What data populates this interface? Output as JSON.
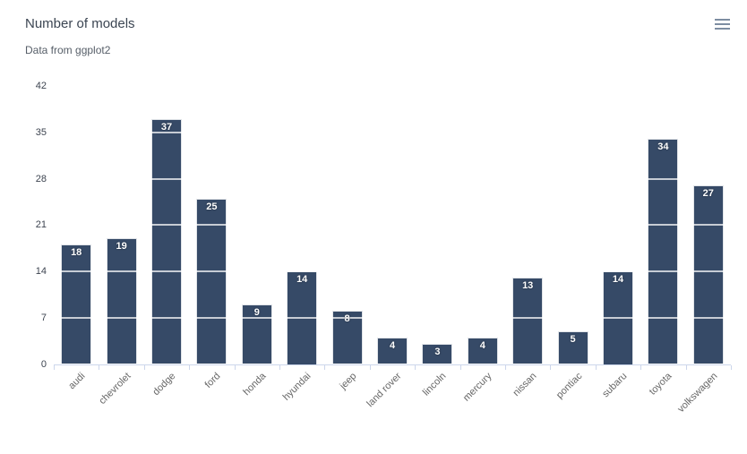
{
  "chart_data": {
    "type": "bar",
    "title": "Number of models",
    "subtitle": "Data from ggplot2",
    "categories": [
      "audi",
      "chevrolet",
      "dodge",
      "ford",
      "honda",
      "hyundai",
      "jeep",
      "land rover",
      "lincoln",
      "mercury",
      "nissan",
      "pontiac",
      "subaru",
      "toyota",
      "volkswagen"
    ],
    "values": [
      18,
      19,
      37,
      25,
      9,
      14,
      8,
      4,
      3,
      4,
      13,
      5,
      14,
      34,
      27
    ],
    "yticks": [
      0,
      7,
      14,
      21,
      28,
      35,
      42
    ],
    "ylim": [
      0,
      42
    ],
    "xlabel": "",
    "ylabel": "",
    "legend_visible": false,
    "grid": "horizontal gridlines, white, visible only where they cross bars",
    "data_labels_position": "inside-top",
    "x_label_rotation_deg": -45
  },
  "icons": {
    "context_menu": "hamburger-menu-icon"
  },
  "colors": {
    "background": "#ffffff",
    "bar": "#364a67",
    "bar_border": "rgba(255,255,255,0.85)",
    "gridline": "rgba(255,255,255,0.72)",
    "axis_line": "#ccd6eb",
    "title": "#3b4552",
    "subtitle": "#565e68",
    "y_labels": "#3d4450",
    "x_labels": "#666666",
    "data_labels": "#ffffff",
    "menu_icon": "#7d8da1"
  }
}
